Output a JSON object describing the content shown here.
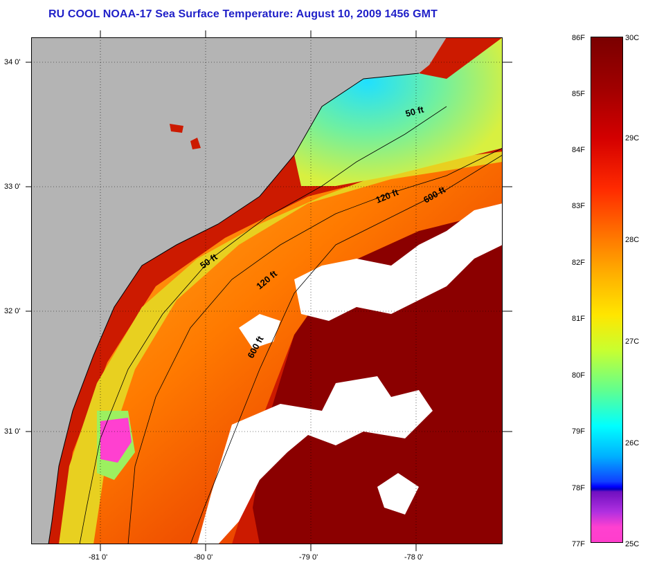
{
  "title": "RU COOL  NOAA-17  Sea Surface Temperature:  August 10, 2009 1456 GMT",
  "map": {
    "lat_ticks": [
      "34 0'",
      "33 0'",
      "32 0'",
      "31 0'"
    ],
    "lon_ticks": [
      "-81 0'",
      "-80 0'",
      "-79 0'",
      "-78 0'"
    ],
    "contour_labels": [
      "50 ft",
      "120 ft",
      "600 ft",
      "50 ft",
      "120 ft",
      "600 ft"
    ],
    "colors": {
      "land": "#b4b4b4",
      "cloud": "#ffffff",
      "warmest": "#8b0000",
      "coolest": "#ff40d0"
    }
  },
  "colorbar": {
    "fahrenheit": [
      "86F",
      "85F",
      "84F",
      "83F",
      "82F",
      "81F",
      "80F",
      "79F",
      "78F",
      "77F"
    ],
    "celsius": [
      "30C",
      "29C",
      "28C",
      "27C",
      "26C",
      "25C"
    ]
  }
}
